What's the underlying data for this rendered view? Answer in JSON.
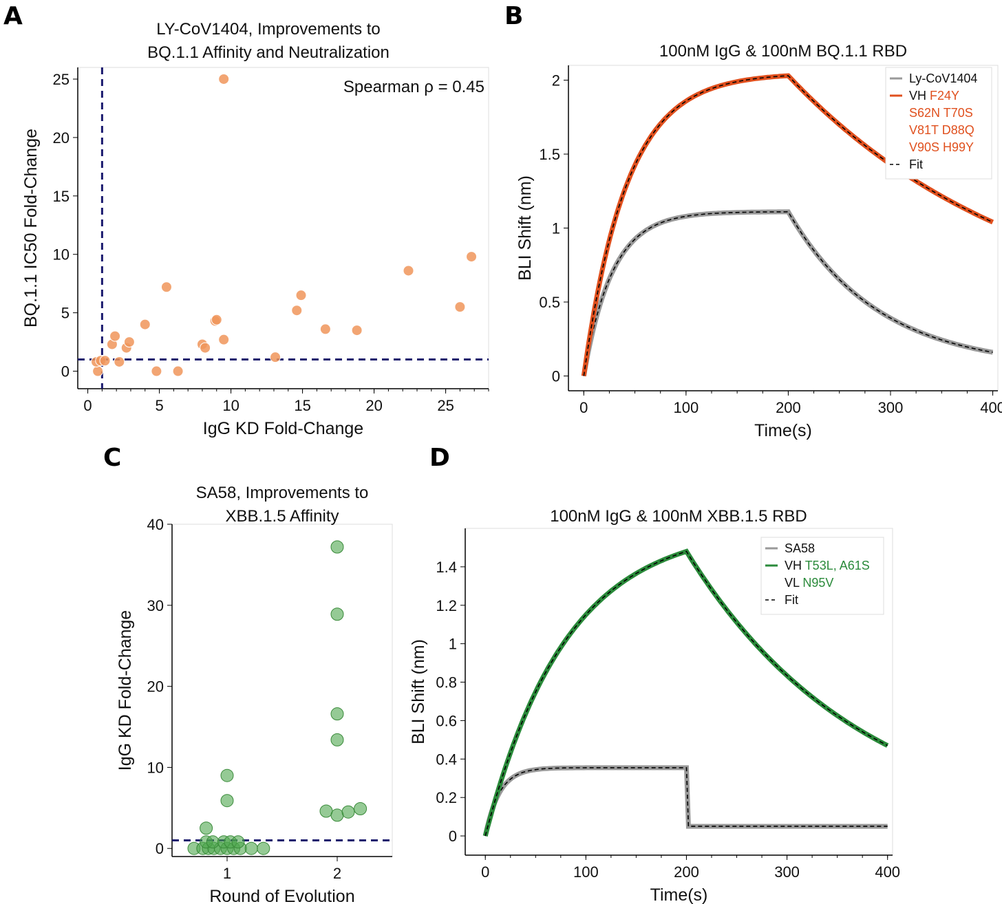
{
  "chart_data": [
    {
      "panel": "A",
      "type": "scatter",
      "title": [
        "LY-CoV1404, Improvements to",
        "BQ.1.1 Affinity and Neutralization"
      ],
      "xlabel": "IgG KD Fold-Change",
      "ylabel": "BQ.1.1 IC50 Fold-Change",
      "xlim": [
        -0.7,
        28
      ],
      "ylim": [
        -1.5,
        26
      ],
      "xticks": [
        0,
        5,
        10,
        15,
        20,
        25
      ],
      "yticks": [
        0,
        5,
        10,
        15,
        20,
        25
      ],
      "annotation": "Spearman ρ = 0.45",
      "ref_lines": {
        "x": 1,
        "y": 1
      },
      "color": "#f0955a",
      "points": [
        [
          9.5,
          25
        ],
        [
          0.7,
          0
        ],
        [
          0.6,
          0.8
        ],
        [
          0.9,
          0.9
        ],
        [
          1.2,
          0.9
        ],
        [
          1.7,
          2.3
        ],
        [
          1.9,
          3.0
        ],
        [
          2.2,
          0.8
        ],
        [
          2.7,
          2.0
        ],
        [
          2.9,
          2.5
        ],
        [
          4.0,
          4.0
        ],
        [
          5.5,
          7.2
        ],
        [
          4.8,
          0
        ],
        [
          6.3,
          0
        ],
        [
          8.0,
          2.3
        ],
        [
          8.2,
          2.0
        ],
        [
          8.9,
          4.3
        ],
        [
          9.0,
          4.4
        ],
        [
          9.5,
          2.7
        ],
        [
          13.1,
          1.2
        ],
        [
          14.6,
          5.2
        ],
        [
          14.9,
          6.5
        ],
        [
          16.6,
          3.6
        ],
        [
          18.8,
          3.5
        ],
        [
          22.4,
          8.6
        ],
        [
          26.0,
          5.5
        ],
        [
          26.8,
          9.8
        ]
      ]
    },
    {
      "panel": "B",
      "type": "line",
      "title": "100nM IgG & 100nM BQ.1.1 RBD",
      "xlabel": "Time(s)",
      "ylabel": "BLI Shift (nm)",
      "xlim": [
        -15,
        405
      ],
      "ylim": [
        -0.1,
        2.1
      ],
      "xticks": [
        0,
        100,
        200,
        300,
        400
      ],
      "yticks": [
        0,
        0.5,
        1,
        1.5,
        2
      ],
      "ytick_labels": [
        "0",
        "0.5",
        "1",
        "1.5",
        "2"
      ],
      "series": [
        {
          "name": "Ly-CoV1404",
          "color": "#999999",
          "plateau": 1.12,
          "tau_assoc": 28,
          "value_at_200": 1.11,
          "value_at_400": 0.16,
          "tau_dissoc": 75,
          "baseline": 0.05
        },
        {
          "name": "VH F24Y S62N T70S V81T D88Q V90S H99Y",
          "color": "#e0501e",
          "plateau": 2.1,
          "tau_assoc": 42,
          "value_at_200": 2.03,
          "value_at_400": 1.04,
          "tau_dissoc": 180,
          "baseline": 0.3
        }
      ],
      "legend": [
        {
          "label": "Ly-CoV1404",
          "style": "gray"
        },
        {
          "prefix": "VH ",
          "lines": [
            "F24Y",
            "S62N T70S",
            "V81T D88Q",
            "V90S H99Y"
          ],
          "style": "orange"
        },
        {
          "label": "Fit",
          "style": "dash"
        }
      ]
    },
    {
      "panel": "C",
      "type": "scatter",
      "title": [
        "SA58, Improvements to",
        "XBB.1.5 Affinity"
      ],
      "xlabel": "Round of Evolution",
      "ylabel": "IgG KD Fold-Change",
      "xlim": [
        0.5,
        2.5
      ],
      "ylim": [
        -1,
        40
      ],
      "xticks": [
        1,
        2
      ],
      "yticks": [
        0,
        10,
        20,
        30,
        40
      ],
      "ref_line_y": 1,
      "color": "#4ea64e",
      "points": [
        [
          0.7,
          0
        ],
        [
          0.78,
          0
        ],
        [
          0.83,
          0
        ],
        [
          0.88,
          0
        ],
        [
          0.94,
          0
        ],
        [
          1.0,
          0
        ],
        [
          1.06,
          0
        ],
        [
          1.12,
          0
        ],
        [
          1.22,
          0
        ],
        [
          1.33,
          0
        ],
        [
          0.81,
          0.8
        ],
        [
          0.87,
          0.8
        ],
        [
          0.97,
          0.8
        ],
        [
          1.03,
          0.8
        ],
        [
          1.1,
          0.8
        ],
        [
          0.81,
          2.5
        ],
        [
          1.0,
          5.9
        ],
        [
          1.0,
          9.0
        ],
        [
          2.0,
          37.2
        ],
        [
          2.0,
          28.9
        ],
        [
          2.0,
          16.6
        ],
        [
          2.0,
          13.4
        ],
        [
          1.9,
          4.6
        ],
        [
          2.0,
          4.1
        ],
        [
          2.1,
          4.5
        ],
        [
          2.21,
          4.9
        ]
      ]
    },
    {
      "panel": "D",
      "type": "line",
      "title": "100nM IgG & 100nM XBB.1.5 RBD",
      "xlabel": "Time(s)",
      "ylabel": "BLI Shift (nm)",
      "xlim": [
        -20,
        405
      ],
      "ylim": [
        -0.1,
        1.6
      ],
      "xticks": [
        0,
        100,
        200,
        300,
        400
      ],
      "yticks": [
        0,
        0.2,
        0.4,
        0.6,
        0.8,
        1,
        1.2,
        1.4
      ],
      "ytick_labels": [
        "0",
        "0.2",
        "0.4",
        "0.6",
        "0.8",
        "1",
        "1.2",
        "1.4"
      ],
      "series": [
        {
          "name": "SA58",
          "color": "#999999",
          "plateau": 0.35,
          "tau_assoc": 14,
          "value_at_200": 0.355,
          "value_at_400": 0.05,
          "tau_dissoc": 15,
          "baseline": 0.05
        },
        {
          "name": "VH T53L, A61S VL N95V",
          "color": "#2a8a3a",
          "plateau": 1.62,
          "tau_assoc": 80,
          "value_at_200": 1.48,
          "value_at_400": 0.47,
          "tau_dissoc": 150,
          "baseline": 0.0
        }
      ],
      "legend": [
        {
          "label": "SA58",
          "style": "gray"
        },
        {
          "prefix": "VH ",
          "lines": [
            "T53L, A61S"
          ],
          "style": "green"
        },
        {
          "prefix": "VL ",
          "lines": [
            "N95V"
          ],
          "style": "none"
        },
        {
          "label": "Fit",
          "style": "dash"
        }
      ]
    }
  ],
  "panel_labels": [
    "A",
    "B",
    "C",
    "D"
  ]
}
